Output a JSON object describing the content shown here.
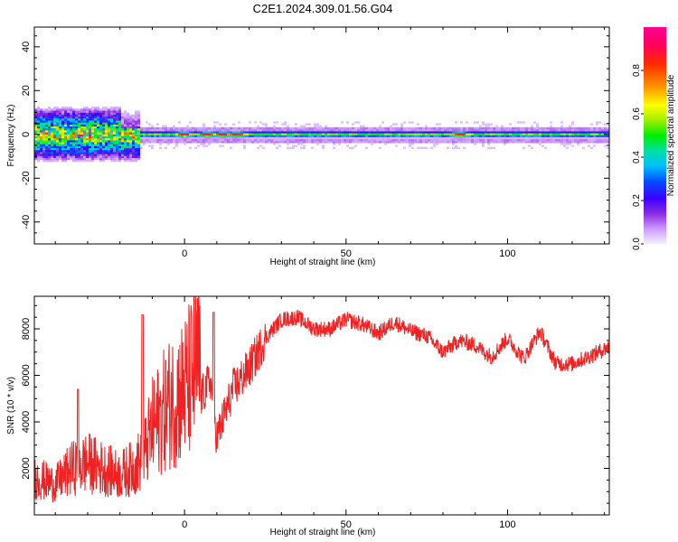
{
  "title": "C2E1.2024.309.01.56.G04",
  "colors": {
    "snr_line": "#ee2222",
    "background": "#ffffff",
    "axis": "#000000"
  },
  "chart_data": [
    {
      "type": "heatmap",
      "xlabel": "Height of straight line (km)",
      "ylabel": "Frequency (Hz)",
      "xlim": [
        -46.5,
        131.5
      ],
      "ylim": [
        -50,
        49
      ],
      "x_ticks": [
        0,
        50,
        100
      ],
      "y_ticks": [
        -40,
        -20,
        0,
        20,
        40
      ],
      "grid": false,
      "colorbar": {
        "label": "Normalized spectral amplitude",
        "range": [
          0,
          1
        ],
        "ticks": [
          "0.0",
          "0.2",
          "0.4",
          "0.6",
          "0.8"
        ],
        "colormap": [
          "#f0f0ff",
          "#cc99ff",
          "#8a2be2",
          "#3c00ff",
          "#0050ff",
          "#00c0ff",
          "#00e0a0",
          "#00ee00",
          "#a0ee00",
          "#ffff00",
          "#ff9900",
          "#ff2a00",
          "#ff0060",
          "#ff0090"
        ]
      },
      "description_of_signal": {
        "band_center_hz": 0,
        "band_halfwidth_hz": [
          2,
          10
        ],
        "noisy_region_km": [
          -46,
          -14
        ],
        "peaks_km": [
          0,
          7,
          12,
          16,
          85
        ]
      }
    },
    {
      "type": "line",
      "xlabel": "Height of straight line (km)",
      "ylabel": "SNR (10 * v/v)",
      "xlim": [
        -46.5,
        131.5
      ],
      "ylim": [
        0,
        9400
      ],
      "x_ticks": [
        0,
        50,
        100
      ],
      "y_ticks": [
        2000,
        4000,
        6000,
        8000
      ],
      "grid": false,
      "series": [
        {
          "x": [
            -46,
            -40,
            -35,
            -30,
            -25,
            -20,
            -15,
            -12,
            -10,
            -5,
            0,
            5,
            8,
            10,
            15,
            20,
            25,
            30,
            35,
            40,
            45,
            50,
            55,
            60,
            65,
            70,
            75,
            80,
            85,
            90,
            95,
            100,
            105,
            110,
            115,
            120,
            125,
            131
          ],
          "y": [
            1200,
            1000,
            1500,
            1700,
            1500,
            1300,
            1600,
            2100,
            2800,
            3600,
            4100,
            5000,
            5800,
            3300,
            5400,
            6300,
            7600,
            8400,
            8500,
            8000,
            8000,
            8400,
            8200,
            7800,
            8300,
            7900,
            7700,
            7000,
            7500,
            7300,
            6800,
            7600,
            6700,
            7900,
            6500,
            6500,
            6800,
            7200
          ]
        }
      ],
      "spikes": [
        {
          "x": -33,
          "y": 5400
        },
        {
          "x": -13,
          "y": 8600
        },
        {
          "x": 9,
          "y": 8700
        }
      ]
    }
  ]
}
